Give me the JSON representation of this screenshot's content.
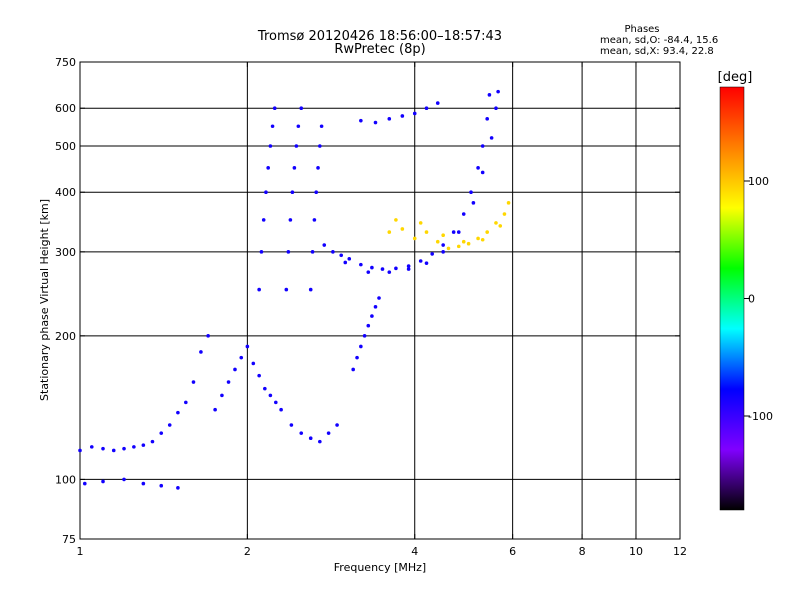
{
  "chart_data": {
    "type": "scatter",
    "title": "Tromsø 20120426 18:56:00–18:57:43",
    "subtitle": "RwPretec (8p)",
    "xlabel": "Frequency [MHz]",
    "ylabel": "Stationary phase Virtual Height [km]",
    "x_scale": "log",
    "y_scale": "log",
    "xlim": [
      1,
      12
    ],
    "ylim": [
      75,
      750
    ],
    "x_ticks": [
      1,
      2,
      4,
      6,
      8,
      10,
      12
    ],
    "y_ticks": [
      75,
      100,
      200,
      300,
      400,
      500,
      600,
      750
    ],
    "x_tick_labels": [
      "1",
      "2",
      "4",
      "6",
      "8",
      "10",
      "12"
    ],
    "y_tick_labels": [
      "75",
      "100",
      "200",
      "300",
      "400",
      "500",
      "600",
      "750"
    ],
    "grid": true,
    "grid_x": [
      2,
      4,
      6,
      8,
      10
    ],
    "grid_y": [
      100,
      200,
      300,
      400,
      500,
      600
    ],
    "stats": {
      "heading": "Phases",
      "line1": "mean, sd,O:  -84.4,  15.6",
      "line2": "mean, sd,X:   93.4,  22.8",
      "O": {
        "mean": -84.4,
        "sd": 15.6
      },
      "X": {
        "mean": 93.4,
        "sd": 22.8
      }
    },
    "colorbar": {
      "label": "[deg]",
      "min": -180,
      "max": 180,
      "ticks": [
        100,
        0,
        -100
      ],
      "tick_labels": [
        "100",
        "0",
        "-100"
      ],
      "colormap": [
        "#000000",
        "#8000ff",
        "#0000ff",
        "#00ffff",
        "#00ff00",
        "#ffff00",
        "#ff8000",
        "#ff0000"
      ]
    },
    "series": [
      {
        "phase_mean": -84.4,
        "points": [
          [
            1.0,
            115
          ],
          [
            1.05,
            117
          ],
          [
            1.1,
            116
          ],
          [
            1.15,
            115
          ],
          [
            1.2,
            116
          ],
          [
            1.25,
            117
          ],
          [
            1.3,
            118
          ],
          [
            1.35,
            120
          ],
          [
            1.4,
            125
          ],
          [
            1.45,
            130
          ],
          [
            1.5,
            138
          ],
          [
            1.55,
            145
          ],
          [
            1.6,
            160
          ],
          [
            1.65,
            185
          ],
          [
            1.7,
            200
          ],
          [
            1.02,
            98
          ],
          [
            1.1,
            99
          ],
          [
            1.2,
            100
          ],
          [
            1.3,
            98
          ],
          [
            1.4,
            97
          ],
          [
            1.5,
            96
          ],
          [
            1.75,
            140
          ],
          [
            1.8,
            150
          ],
          [
            1.85,
            160
          ],
          [
            1.9,
            170
          ],
          [
            1.95,
            180
          ],
          [
            2.0,
            190
          ],
          [
            2.05,
            175
          ],
          [
            2.1,
            165
          ],
          [
            2.15,
            155
          ],
          [
            2.2,
            150
          ],
          [
            2.25,
            145
          ],
          [
            2.3,
            140
          ],
          [
            2.4,
            130
          ],
          [
            2.5,
            125
          ],
          [
            2.6,
            122
          ],
          [
            2.7,
            120
          ],
          [
            2.8,
            125
          ],
          [
            2.9,
            130
          ],
          [
            2.1,
            250
          ],
          [
            2.12,
            300
          ],
          [
            2.14,
            350
          ],
          [
            2.16,
            400
          ],
          [
            2.18,
            450
          ],
          [
            2.2,
            500
          ],
          [
            2.22,
            550
          ],
          [
            2.24,
            600
          ],
          [
            2.35,
            250
          ],
          [
            2.37,
            300
          ],
          [
            2.39,
            350
          ],
          [
            2.41,
            400
          ],
          [
            2.43,
            450
          ],
          [
            2.45,
            500
          ],
          [
            2.47,
            550
          ],
          [
            2.5,
            600
          ],
          [
            2.6,
            250
          ],
          [
            2.62,
            300
          ],
          [
            2.64,
            350
          ],
          [
            2.66,
            400
          ],
          [
            2.68,
            450
          ],
          [
            2.7,
            500
          ],
          [
            2.72,
            550
          ],
          [
            2.75,
            310
          ],
          [
            2.85,
            300
          ],
          [
            2.95,
            295
          ],
          [
            3.05,
            290
          ],
          [
            3.2,
            282
          ],
          [
            3.35,
            278
          ],
          [
            3.5,
            276
          ],
          [
            3.7,
            277
          ],
          [
            3.9,
            280
          ],
          [
            4.1,
            287
          ],
          [
            4.3,
            297
          ],
          [
            4.5,
            310
          ],
          [
            4.7,
            330
          ],
          [
            4.9,
            360
          ],
          [
            5.05,
            400
          ],
          [
            5.2,
            450
          ],
          [
            5.3,
            500
          ],
          [
            5.4,
            570
          ],
          [
            5.45,
            640
          ],
          [
            3.0,
            285
          ],
          [
            3.3,
            272
          ],
          [
            3.6,
            272
          ],
          [
            3.9,
            276
          ],
          [
            4.2,
            284
          ],
          [
            4.5,
            300
          ],
          [
            4.8,
            330
          ],
          [
            5.1,
            380
          ],
          [
            5.3,
            440
          ],
          [
            5.5,
            520
          ],
          [
            5.6,
            600
          ],
          [
            5.65,
            650
          ],
          [
            3.1,
            170
          ],
          [
            3.15,
            180
          ],
          [
            3.2,
            190
          ],
          [
            3.25,
            200
          ],
          [
            3.3,
            210
          ],
          [
            3.35,
            220
          ],
          [
            3.4,
            230
          ],
          [
            3.45,
            240
          ],
          [
            3.2,
            565
          ],
          [
            3.4,
            560
          ],
          [
            3.6,
            570
          ],
          [
            3.8,
            578
          ],
          [
            4.0,
            585
          ],
          [
            4.2,
            600
          ],
          [
            4.4,
            615
          ]
        ]
      },
      {
        "phase_mean": 93.4,
        "points": [
          [
            3.6,
            330
          ],
          [
            3.8,
            335
          ],
          [
            4.0,
            320
          ],
          [
            4.2,
            330
          ],
          [
            4.4,
            315
          ],
          [
            4.6,
            305
          ],
          [
            4.8,
            308
          ],
          [
            5.0,
            312
          ],
          [
            5.2,
            320
          ],
          [
            5.4,
            330
          ],
          [
            5.6,
            345
          ],
          [
            5.8,
            360
          ],
          [
            5.9,
            380
          ],
          [
            3.7,
            350
          ],
          [
            4.1,
            345
          ],
          [
            4.5,
            325
          ],
          [
            4.9,
            315
          ],
          [
            5.3,
            318
          ],
          [
            5.7,
            340
          ]
        ]
      }
    ]
  }
}
